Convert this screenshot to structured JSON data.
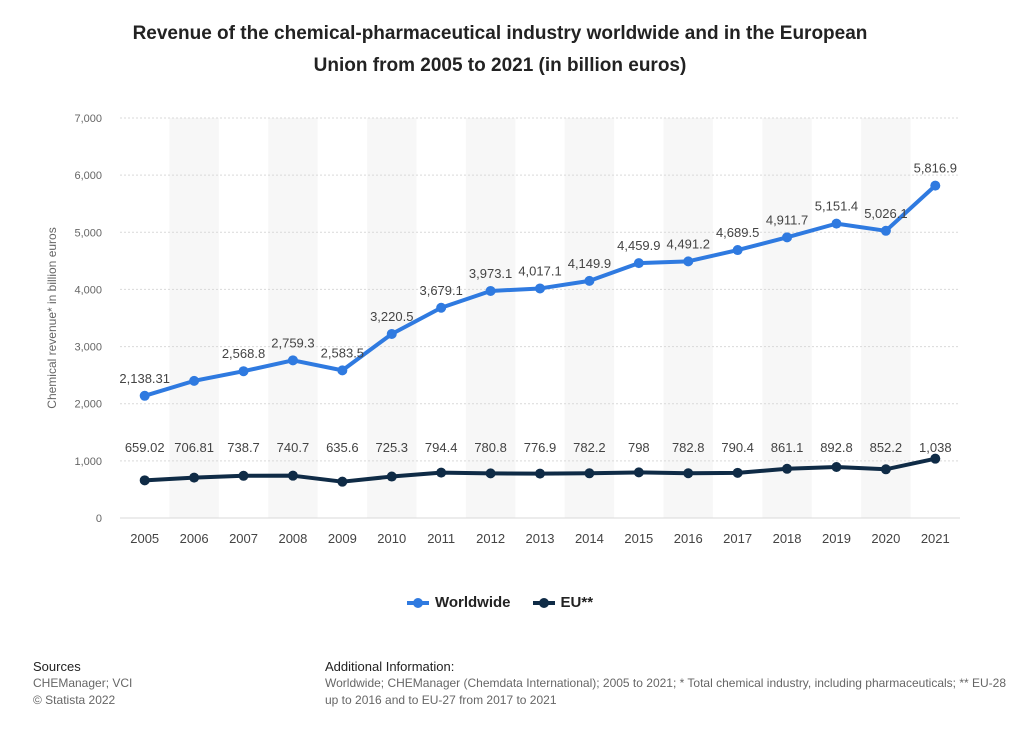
{
  "chart_data": {
    "type": "line",
    "title_line1": "Revenue of the chemical-pharmaceutical industry worldwide and in the European",
    "title_line2": "Union from 2005 to 2021 (in billion euros)",
    "xlabel": "",
    "ylabel": "Chemical revenue* in billion euros",
    "ylim": [
      0,
      7000
    ],
    "yticks": [
      0,
      1000,
      2000,
      3000,
      4000,
      5000,
      6000,
      7000
    ],
    "ytick_labels": [
      "0",
      "1,000",
      "2,000",
      "3,000",
      "4,000",
      "5,000",
      "6,000",
      "7,000"
    ],
    "categories": [
      "2005",
      "2006",
      "2007",
      "2008",
      "2009",
      "2010",
      "2011",
      "2012",
      "2013",
      "2014",
      "2015",
      "2016",
      "2017",
      "2018",
      "2019",
      "2020",
      "2021"
    ],
    "grid": true,
    "legend_position": "bottom-center",
    "series": [
      {
        "name": "Worldwide",
        "color": "#2f7ae0",
        "values": [
          2138.31,
          2400,
          2568.8,
          2759.3,
          2583.5,
          3220.5,
          3679.1,
          3973.1,
          4017.1,
          4149.9,
          4459.9,
          4491.2,
          4689.5,
          4911.7,
          5151.4,
          5026.1,
          5816.9
        ],
        "labels": [
          "2,138.31",
          null,
          "2,568.8",
          "2,759.3",
          "2,583.5",
          "3,220.5",
          "3,679.1",
          "3,973.1",
          "4,017.1",
          "4,149.9",
          "4,459.9",
          "4,491.2",
          "4,689.5",
          "4,911.7",
          "5,151.4",
          "5,026.1",
          "5,816.9"
        ]
      },
      {
        "name": "EU**",
        "color": "#0f2b46",
        "values": [
          659.02,
          706.81,
          738.7,
          740.7,
          635.6,
          725.3,
          794.4,
          780.8,
          776.9,
          782.2,
          798,
          782.8,
          790.4,
          861.1,
          892.8,
          852.2,
          1038
        ],
        "labels": [
          "659.02",
          "706.81",
          "738.7",
          "740.7",
          "635.6",
          "725.3",
          "794.4",
          "780.8",
          "776.9",
          "782.2",
          "798",
          "782.8",
          "790.4",
          "861.1",
          "892.8",
          "852.2",
          "1,038"
        ]
      }
    ]
  },
  "legend": {
    "worldwide": "Worldwide",
    "eu": "EU**"
  },
  "footer": {
    "sources_heading": "Sources",
    "sources_line1": "CHEManager; VCI",
    "sources_line2": "© Statista 2022",
    "addinfo_heading": "Additional Information:",
    "addinfo_text": "Worldwide; CHEManager (Chemdata International); 2005 to 2021; * Total chemical industry, including pharmaceuticals; ** EU-28 up to 2016 and to EU-27 from 2017 to 2021"
  }
}
